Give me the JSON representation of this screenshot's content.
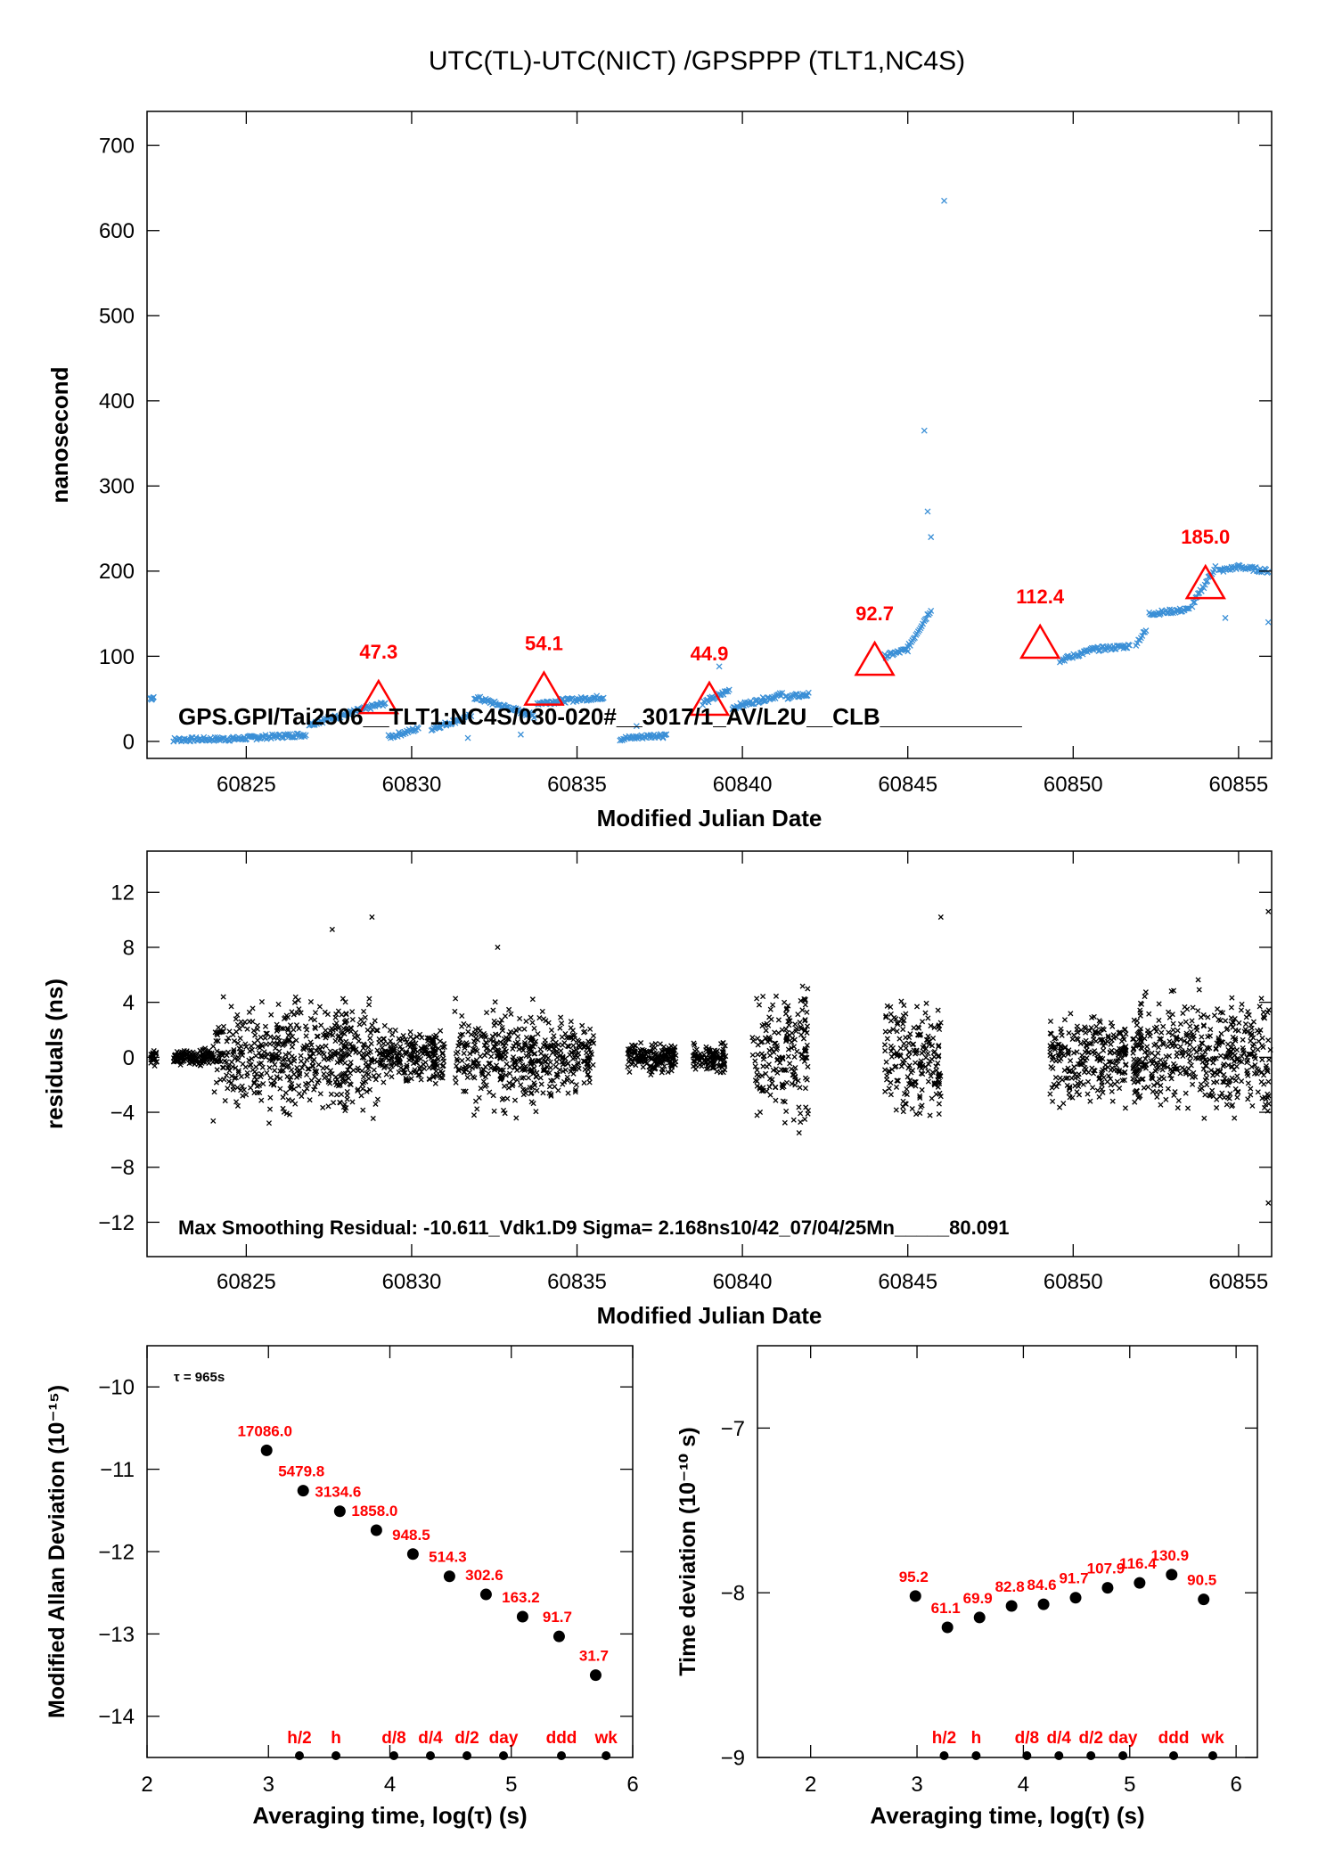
{
  "page_title": "UTC(TL)-UTC(NICT)  /GPSPPP  (TLT1,NC4S)",
  "colors": {
    "series": "#3a8fd6",
    "residual": "#000000",
    "annotation": "#ff0000",
    "point": "#000000"
  },
  "chart_data": [
    {
      "type": "scatter",
      "title": "UTC(TL)-UTC(NICT)  /GPSPPP  (TLT1,NC4S)",
      "xlabel": "Modified Julian Date",
      "ylabel": "nanosecond",
      "xlim": [
        60822,
        60856
      ],
      "ylim": [
        -20,
        740
      ],
      "xticks": [
        60825,
        60830,
        60835,
        60840,
        60845,
        60850,
        60855
      ],
      "yticks": [
        0,
        100,
        200,
        300,
        400,
        500,
        600,
        700
      ],
      "marker_label": "GPS.GPI/Tai2506__TLT1:NC4S/030-020#__3017/1_AV/L2U__CLB___________",
      "series": [
        {
          "marker": "x",
          "color": "#3a8fd6",
          "segments": [
            {
              "start": 60822.1,
              "end": 60822.2,
              "y0": 50,
              "y1": 52
            },
            {
              "start": 60822.8,
              "end": 60824.6,
              "y0": 2,
              "y1": 3
            },
            {
              "start": 60824.6,
              "end": 60826.8,
              "y0": 3,
              "y1": 8
            },
            {
              "start": 60826.9,
              "end": 60829.2,
              "y0": 20,
              "y1": 45
            },
            {
              "start": 60829.3,
              "end": 60830.2,
              "y0": 5,
              "y1": 15
            },
            {
              "start": 60830.6,
              "end": 60831.8,
              "y0": 15,
              "y1": 30
            },
            {
              "start": 60831.9,
              "end": 60833.7,
              "y0": 52,
              "y1": 30
            },
            {
              "start": 60833.8,
              "end": 60835.8,
              "y0": 45,
              "y1": 52
            },
            {
              "start": 60836.3,
              "end": 60837.7,
              "y0": 3,
              "y1": 8
            },
            {
              "start": 60838.8,
              "end": 60839.6,
              "y0": 45,
              "y1": 60
            },
            {
              "start": 60839.7,
              "end": 60841.2,
              "y0": 40,
              "y1": 55
            },
            {
              "start": 60841.3,
              "end": 60842.0,
              "y0": 52,
              "y1": 55
            },
            {
              "start": 60844.3,
              "end": 60845.0,
              "y0": 100,
              "y1": 108
            },
            {
              "start": 60845.0,
              "end": 60845.7,
              "y0": 110,
              "y1": 155
            },
            {
              "start": 60849.6,
              "end": 60850.6,
              "y0": 95,
              "y1": 108
            },
            {
              "start": 60850.6,
              "end": 60851.7,
              "y0": 108,
              "y1": 112
            },
            {
              "start": 60851.9,
              "end": 60852.2,
              "y0": 115,
              "y1": 130
            },
            {
              "start": 60852.3,
              "end": 60853.5,
              "y0": 150,
              "y1": 155
            },
            {
              "start": 60853.6,
              "end": 60854.3,
              "y0": 160,
              "y1": 205
            },
            {
              "start": 60854.4,
              "end": 60855.0,
              "y0": 200,
              "y1": 205
            },
            {
              "start": 60855.0,
              "end": 60855.9,
              "y0": 205,
              "y1": 200
            }
          ],
          "outliers": [
            [
              60839.3,
              88
            ],
            [
              60845.5,
              365
            ],
            [
              60845.6,
              270
            ],
            [
              60845.7,
              240
            ],
            [
              60846.1,
              635
            ],
            [
              60837.6,
              4
            ],
            [
              60831.7,
              4
            ],
            [
              60836.8,
              18
            ],
            [
              60855.9,
              140
            ],
            [
              60854.6,
              145
            ],
            [
              60833.3,
              8
            ]
          ]
        }
      ],
      "annotations": [
        {
          "x": 60829,
          "y": 50,
          "label": "47.3"
        },
        {
          "x": 60834,
          "y": 60,
          "label": "54.1"
        },
        {
          "x": 60839,
          "y": 48,
          "label": "44.9"
        },
        {
          "x": 60844,
          "y": 95,
          "label": "92.7"
        },
        {
          "x": 60849,
          "y": 115,
          "label": "112.4"
        },
        {
          "x": 60854,
          "y": 185,
          "label": "185.0"
        }
      ]
    },
    {
      "type": "scatter",
      "xlabel": "Modified Julian Date",
      "ylabel": "residuals (ns)",
      "xlim": [
        60822,
        60856
      ],
      "ylim": [
        -14.5,
        15
      ],
      "xticks": [
        60825,
        60830,
        60835,
        60840,
        60845,
        60850,
        60855
      ],
      "yticks": [
        12,
        8,
        4,
        0,
        -4,
        -8,
        -12
      ],
      "yticklabels": [
        "12",
        "8",
        "4",
        "0",
        "−4",
        "−8",
        "−12"
      ],
      "stats_label": "Max Smoothing Residual: -10.611_Vdk1.D9  Sigma= 2.168ns10/42_07/04/25Mn_____80.091",
      "clusters": [
        {
          "start": 60822.1,
          "end": 60822.3,
          "spread": 0.8
        },
        {
          "start": 60822.8,
          "end": 60824.0,
          "spread": 0.8
        },
        {
          "start": 60824.0,
          "end": 60829.0,
          "spread": 5.5
        },
        {
          "start": 60829.0,
          "end": 60831.0,
          "spread": 3.0
        },
        {
          "start": 60831.3,
          "end": 60834.0,
          "spread": 5.0
        },
        {
          "start": 60834.0,
          "end": 60835.5,
          "spread": 3.5
        },
        {
          "start": 60836.5,
          "end": 60838.0,
          "spread": 1.5
        },
        {
          "start": 60838.5,
          "end": 60839.5,
          "spread": 1.5
        },
        {
          "start": 60840.3,
          "end": 60842.0,
          "spread": 6.5
        },
        {
          "start": 60844.3,
          "end": 60846.0,
          "spread": 6.5
        },
        {
          "start": 60849.3,
          "end": 60851.6,
          "spread": 4.0
        },
        {
          "start": 60851.8,
          "end": 60856.0,
          "spread": 6.0
        }
      ],
      "outliers": [
        [
          60828.8,
          10.2
        ],
        [
          60846.0,
          10.2
        ],
        [
          60855.9,
          10.6
        ],
        [
          60855.9,
          -10.6
        ],
        [
          60827.6,
          9.3
        ],
        [
          60832.6,
          8.0
        ]
      ]
    },
    {
      "type": "scatter",
      "xlabel": "Averaging time, log(τ) (s)",
      "ylabel": "Modified Allan Deviation (10⁻¹⁵)",
      "xlim": [
        2,
        6
      ],
      "ylim": [
        -14.5,
        -9.5
      ],
      "xticks": [
        2,
        3,
        4,
        5,
        6
      ],
      "yticks": [
        -10,
        -11,
        -12,
        -13,
        -14
      ],
      "yticklabels": [
        "−10",
        "−11",
        "−12",
        "−13",
        "−14"
      ],
      "tau_label": "τ = 965s",
      "points": [
        {
          "x": 2.985,
          "y": -10.77,
          "label": "17086.0"
        },
        {
          "x": 3.286,
          "y": -11.26,
          "label": "5479.8"
        },
        {
          "x": 3.588,
          "y": -11.51,
          "label": "3134.6"
        },
        {
          "x": 3.889,
          "y": -11.74,
          "label": "1858.0"
        },
        {
          "x": 4.19,
          "y": -12.03,
          "label": "948.5"
        },
        {
          "x": 4.491,
          "y": -12.3,
          "label": "514.3"
        },
        {
          "x": 4.792,
          "y": -12.52,
          "label": "302.6"
        },
        {
          "x": 5.093,
          "y": -12.79,
          "label": "163.2"
        },
        {
          "x": 5.394,
          "y": -13.03,
          "label": "91.7"
        },
        {
          "x": 5.695,
          "y": -13.5,
          "label": "31.7"
        }
      ],
      "interval_marks": [
        {
          "x": 3.255,
          "label": "h/2"
        },
        {
          "x": 3.556,
          "label": "h"
        },
        {
          "x": 4.033,
          "label": "d/8"
        },
        {
          "x": 4.334,
          "label": "d/4"
        },
        {
          "x": 4.635,
          "label": "d/2"
        },
        {
          "x": 4.936,
          "label": "day"
        },
        {
          "x": 5.413,
          "label": "ddd"
        },
        {
          "x": 5.781,
          "label": "wk"
        }
      ]
    },
    {
      "type": "scatter",
      "xlabel": "Averaging time, log(τ) (s)",
      "ylabel": "Time deviation (10⁻¹⁰ s)",
      "xlim": [
        1.5,
        6.2
      ],
      "ylim": [
        -9,
        -6.5
      ],
      "xticks": [
        2,
        3,
        4,
        5,
        6
      ],
      "yticks": [
        -7,
        -8,
        -9
      ],
      "yticklabels": [
        "−7",
        "−8",
        "−9"
      ],
      "points": [
        {
          "x": 2.985,
          "y": -8.02,
          "label": "95.2"
        },
        {
          "x": 3.286,
          "y": -8.21,
          "label": "61.1"
        },
        {
          "x": 3.588,
          "y": -8.15,
          "label": "69.9"
        },
        {
          "x": 3.889,
          "y": -8.08,
          "label": "82.8"
        },
        {
          "x": 4.19,
          "y": -8.07,
          "label": "84.6"
        },
        {
          "x": 4.491,
          "y": -8.03,
          "label": "91.7"
        },
        {
          "x": 4.792,
          "y": -7.97,
          "label": "107.9"
        },
        {
          "x": 5.093,
          "y": -7.94,
          "label": "116.4"
        },
        {
          "x": 5.394,
          "y": -7.89,
          "label": "130.9"
        },
        {
          "x": 5.695,
          "y": -8.04,
          "label": "90.5"
        }
      ],
      "interval_marks": [
        {
          "x": 3.255,
          "label": "h/2"
        },
        {
          "x": 3.556,
          "label": "h"
        },
        {
          "x": 4.033,
          "label": "d/8"
        },
        {
          "x": 4.334,
          "label": "d/4"
        },
        {
          "x": 4.635,
          "label": "d/2"
        },
        {
          "x": 4.936,
          "label": "day"
        },
        {
          "x": 5.413,
          "label": "ddd"
        },
        {
          "x": 5.781,
          "label": "wk"
        }
      ]
    }
  ]
}
